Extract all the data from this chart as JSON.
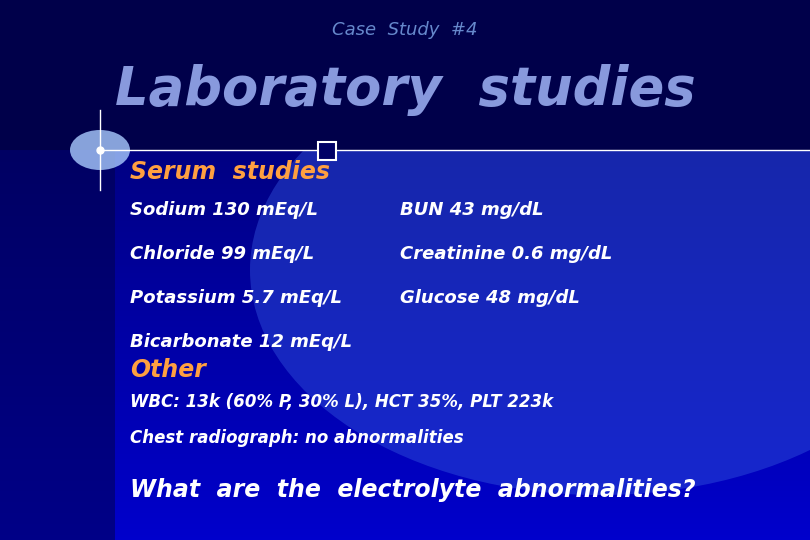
{
  "title_small": "Case  Study  #4",
  "title_large": "Laboratory  studies",
  "section1_header": "Serum  studies",
  "serum_left": [
    "Sodium 130 mEq/L",
    "Chloride 99 mEq/L",
    "Potassium 5.7 mEq/L",
    "Bicarbonate 12 mEq/L"
  ],
  "serum_right": [
    "BUN 43 mg/dL",
    "Creatinine 0.6 mg/dL",
    "Glucose 48 mg/dL"
  ],
  "section2_header": "Other",
  "other_lines": [
    "WBC: 13k (60% P, 30% L), HCT 35%, PLT 223k",
    "Chest radiograph: no abnormalities"
  ],
  "question": "What  are  the  electrolyte  abnormalities?",
  "header_color": "#FFA040",
  "body_color": "#FFFFFF",
  "title_small_color": "#6688CC",
  "title_large_color": "#8899DD"
}
